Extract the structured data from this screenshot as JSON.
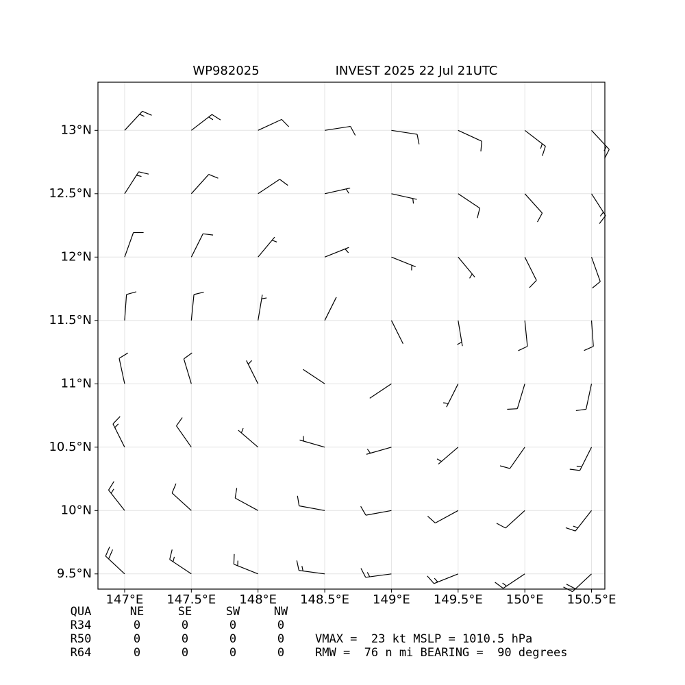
{
  "chart_data": {
    "type": "barbs",
    "title_left": "WP982025",
    "title_right": "INVEST 2025 22 Jul 21UTC",
    "xlim": [
      146.8,
      150.6
    ],
    "ylim": [
      9.38,
      13.38
    ],
    "xticks": [
      {
        "value": 147,
        "label": "147°E"
      },
      {
        "value": 147.5,
        "label": "147.5°E"
      },
      {
        "value": 148,
        "label": "148°E"
      },
      {
        "value": 148.5,
        "label": "148.5°E"
      },
      {
        "value": 149,
        "label": "149°E"
      },
      {
        "value": 149.5,
        "label": "149.5°E"
      },
      {
        "value": 150,
        "label": "150°E"
      },
      {
        "value": 150.5,
        "label": "150.5°E"
      }
    ],
    "yticks": [
      {
        "value": 9.5,
        "label": "9.5°N"
      },
      {
        "value": 10,
        "label": "10°N"
      },
      {
        "value": 10.5,
        "label": "10.5°N"
      },
      {
        "value": 11,
        "label": "11°N"
      },
      {
        "value": 11.5,
        "label": "11.5°N"
      },
      {
        "value": 12,
        "label": "12°N"
      },
      {
        "value": 12.5,
        "label": "12.5°N"
      },
      {
        "value": 13,
        "label": "13°N"
      }
    ],
    "grid": true,
    "color": "#000000",
    "barbs": {
      "lons": [
        147,
        147.5,
        148,
        148.5,
        149,
        149.5,
        150,
        150.5
      ],
      "lats": [
        13,
        12.5,
        12,
        11.5,
        11,
        10.5,
        10,
        9.5
      ],
      "u": [
        [
          -13,
          -13,
          -13,
          -13,
          -13,
          -13,
          -13,
          -13
        ],
        [
          -9,
          -9,
          -9,
          -9,
          -9,
          -9,
          -9,
          -9
        ],
        [
          -5,
          -5,
          -5,
          -5,
          -5,
          -5,
          -5,
          -5
        ],
        [
          -1,
          -1,
          -1,
          -1,
          -1,
          -1,
          -1,
          -1
        ],
        [
          3,
          3,
          3,
          3,
          3,
          3,
          3,
          3
        ],
        [
          7,
          7,
          7,
          7,
          7,
          7,
          7,
          7
        ],
        [
          11,
          11,
          11,
          11,
          11,
          11,
          11,
          11
        ],
        [
          15,
          15,
          15,
          15,
          15,
          15,
          15,
          15
        ]
      ],
      "v": [
        [
          -14,
          -10,
          -6,
          -2,
          2,
          6,
          10,
          14
        ],
        [
          -14,
          -10,
          -6,
          -2,
          2,
          6,
          10,
          14
        ],
        [
          -14,
          -10,
          -6,
          -2,
          2,
          6,
          10,
          14
        ],
        [
          -14,
          -10,
          -6,
          -2,
          2,
          6,
          10,
          14
        ],
        [
          -14,
          -10,
          -6,
          -2,
          2,
          6,
          10,
          14
        ],
        [
          -14,
          -10,
          -6,
          -2,
          2,
          6,
          10,
          14
        ],
        [
          -14,
          -10,
          -6,
          -2,
          2,
          6,
          10,
          14
        ],
        [
          -14,
          -10,
          -6,
          -2,
          2,
          6,
          10,
          14
        ]
      ]
    }
  },
  "table": {
    "header": [
      "QUA",
      "NE",
      "SE",
      "SW",
      "NW"
    ],
    "rows": [
      [
        "R34",
        "0",
        "0",
        "0",
        "0"
      ],
      [
        "R50",
        "0",
        "0",
        "0",
        "0"
      ],
      [
        "R64",
        "0",
        "0",
        "0",
        "0"
      ]
    ]
  },
  "stats": [
    "VMAX =  23 kt MSLP = 1010.5 hPa",
    "RMW =  76 n mi BEARING =  90 degrees"
  ]
}
